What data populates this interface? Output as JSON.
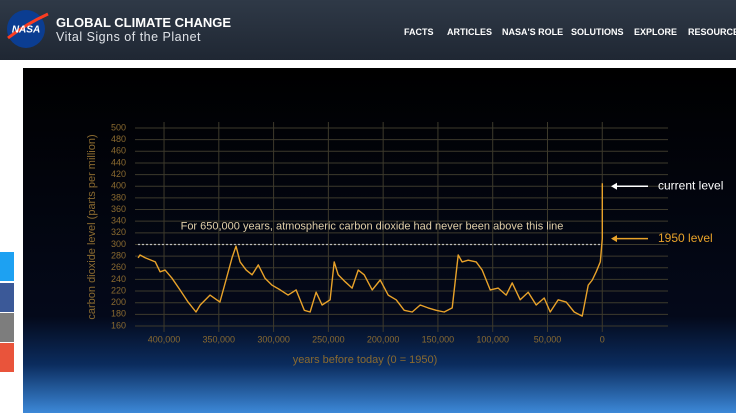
{
  "header": {
    "logo_text": "NASA",
    "title": "GLOBAL CLIMATE CHANGE",
    "subtitle": "Vital Signs of the Planet"
  },
  "nav": [
    "FACTS",
    "ARTICLES",
    "NASA'S ROLE",
    "SOLUTIONS",
    "EXPLORE",
    "RESOURCES"
  ],
  "chart_data": {
    "type": "line",
    "x_label": "years before today (0 = 1950)",
    "y_label": "carbon dioxide level (parts per million)",
    "annotation": "For 650,000 years, atmospheric carbon dioxide had never been above this line",
    "threshold": 300,
    "markers": [
      {
        "label": "current level",
        "value": 400,
        "color": "#ffffff"
      },
      {
        "label": "1950 level",
        "value": 310,
        "color": "#e8a22a"
      }
    ],
    "xlim": [
      426500,
      -60000
    ],
    "xticks": [
      {
        "value": 400000,
        "label": "400,000"
      },
      {
        "value": 350000,
        "label": "350,000"
      },
      {
        "value": 300000,
        "label": "300,000"
      },
      {
        "value": 250000,
        "label": "250,000"
      },
      {
        "value": 200000,
        "label": "200,000"
      },
      {
        "value": 150000,
        "label": "150,000"
      },
      {
        "value": 100000,
        "label": "100,000"
      },
      {
        "value": 50000,
        "label": "50,000"
      },
      0
    ],
    "ylim": [
      160,
      500
    ],
    "yticks": [
      160,
      180,
      200,
      220,
      240,
      260,
      280,
      300,
      320,
      340,
      360,
      380,
      400,
      420,
      440,
      460,
      480,
      500
    ],
    "grid": true,
    "color": "#e8a22a",
    "x": [
      423700,
      421900,
      417000,
      408000,
      403600,
      399000,
      392700,
      385400,
      378000,
      370800,
      367000,
      358000,
      349000,
      343400,
      338000,
      334300,
      330600,
      325000,
      319600,
      314000,
      307800,
      301400,
      294000,
      286800,
      279500,
      272000,
      266700,
      261200,
      255700,
      248400,
      244700,
      241000,
      234700,
      228300,
      222800,
      217300,
      210000,
      202700,
      195400,
      188100,
      180800,
      173500,
      166200,
      159000,
      151600,
      144300,
      137000,
      131500,
      127900,
      122400,
      115100,
      109600,
      102300,
      95000,
      87700,
      82200,
      74900,
      67600,
      60300,
      53000,
      47500,
      40200,
      32900,
      25600,
      18300,
      12800,
      9100,
      5500,
      1800,
      0,
      -70
    ],
    "values": [
      277,
      282,
      277,
      270,
      253,
      256,
      242,
      222,
      201,
      184,
      196,
      213,
      201,
      239,
      277,
      297,
      270,
      256,
      248,
      265,
      242,
      230,
      222,
      213,
      222,
      187,
      184,
      218,
      196,
      205,
      270,
      248,
      236,
      225,
      256,
      248,
      222,
      239,
      213,
      205,
      187,
      184,
      196,
      191,
      187,
      184,
      191,
      282,
      270,
      273,
      270,
      256,
      222,
      225,
      213,
      234,
      205,
      218,
      196,
      208,
      184,
      205,
      201,
      184,
      177,
      230,
      239,
      253,
      270,
      310,
      405
    ]
  }
}
